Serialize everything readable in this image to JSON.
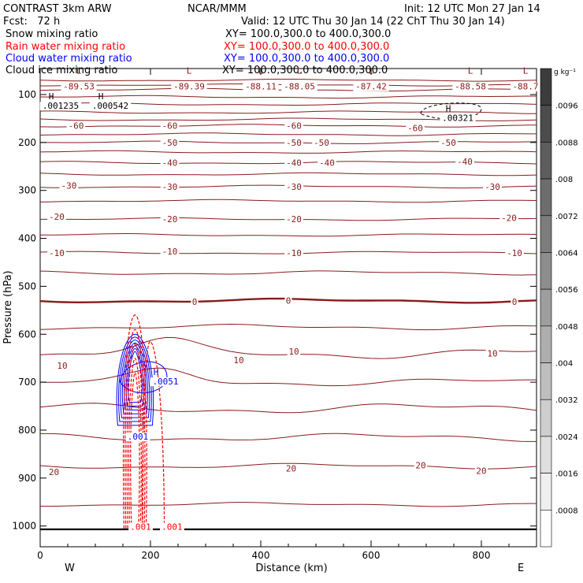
{
  "header": {
    "title": "CONTRAST  3km ARW",
    "org": "NCAR/MMM",
    "init": "Init: 12 UTC Mon 27 Jan 14",
    "fcst": "Fcst:   72 h",
    "valid": "Valid: 12 UTC Thu 30 Jan 14 (22 ChT Thu 30 Jan 14)"
  },
  "legend": [
    {
      "name": "Snow mixing ratio",
      "xy": "XY= 100.0,300.0 to 400.0,300.0",
      "color": "#000000"
    },
    {
      "name": "Rain water mixing ratio",
      "xy": "XY= 100.0,300.0 to 400.0,300.0",
      "color": "#ff0000"
    },
    {
      "name": "Cloud water mixing ratio",
      "xy": "XY= 100.0,300.0 to 400.0,300.0",
      "color": "#0000ff"
    },
    {
      "name": "Cloud ice mixing ratio",
      "xy": "XY= 100.0,300.0 to 400.0,300.0",
      "color": "#000000"
    }
  ],
  "chart_data": {
    "type": "contour",
    "xlabel": "Distance (km)",
    "ylabel": "Pressure (hPa)",
    "xlim": [
      0,
      900
    ],
    "ylim": [
      1050,
      50
    ],
    "x_ticks": [
      "0",
      "200",
      "400",
      "600",
      "800"
    ],
    "y_ticks": [
      "100",
      "200",
      "300",
      "400",
      "500",
      "600",
      "700",
      "800",
      "900",
      "1000"
    ],
    "x_ends": {
      "left": "W",
      "right": "E"
    },
    "temperature_color": "#8b1a1a",
    "isotherm_labels": [
      {
        "text": "-60",
        "x": 65,
        "p": 165
      },
      {
        "text": "-60",
        "x": 235,
        "p": 165
      },
      {
        "text": "-60",
        "x": 460,
        "p": 165
      },
      {
        "text": "-60",
        "x": 680,
        "p": 170
      },
      {
        "text": "-50",
        "x": 235,
        "p": 200
      },
      {
        "text": "-50",
        "x": 460,
        "p": 200
      },
      {
        "text": "-50",
        "x": 510,
        "p": 200
      },
      {
        "text": "-50",
        "x": 740,
        "p": 200
      },
      {
        "text": "-40",
        "x": 235,
        "p": 242
      },
      {
        "text": "-40",
        "x": 460,
        "p": 242
      },
      {
        "text": "-40",
        "x": 520,
        "p": 242
      },
      {
        "text": "-40",
        "x": 770,
        "p": 240
      },
      {
        "text": "-30",
        "x": 52,
        "p": 290
      },
      {
        "text": "-30",
        "x": 235,
        "p": 292
      },
      {
        "text": "-30",
        "x": 460,
        "p": 292
      },
      {
        "text": "-30",
        "x": 820,
        "p": 292
      },
      {
        "text": "-20",
        "x": 30,
        "p": 355
      },
      {
        "text": "-20",
        "x": 235,
        "p": 360
      },
      {
        "text": "-20",
        "x": 460,
        "p": 360
      },
      {
        "text": "-20",
        "x": 850,
        "p": 357
      },
      {
        "text": "-10",
        "x": 30,
        "p": 430
      },
      {
        "text": "-10",
        "x": 235,
        "p": 427
      },
      {
        "text": "-10",
        "x": 460,
        "p": 430
      },
      {
        "text": "-10",
        "x": 860,
        "p": 430
      },
      {
        "text": "0",
        "x": 280,
        "p": 532
      },
      {
        "text": "0",
        "x": 450,
        "p": 530
      },
      {
        "text": "0",
        "x": 860,
        "p": 532
      },
      {
        "text": "10",
        "x": 40,
        "p": 665
      },
      {
        "text": "10",
        "x": 360,
        "p": 654
      },
      {
        "text": "10",
        "x": 460,
        "p": 636
      },
      {
        "text": "10",
        "x": 820,
        "p": 640
      },
      {
        "text": "20",
        "x": 25,
        "p": 887
      },
      {
        "text": "20",
        "x": 455,
        "p": 880
      },
      {
        "text": "20",
        "x": 690,
        "p": 873
      },
      {
        "text": "20",
        "x": 800,
        "p": 885
      }
    ],
    "extrema": [
      {
        "type": "L",
        "label": "-89.53",
        "x": 70,
        "p": 70
      },
      {
        "type": "L",
        "label": "-89.39",
        "x": 270,
        "p": 70
      },
      {
        "type": "L",
        "label": "-88.11",
        "x": 400,
        "p": 70
      },
      {
        "type": "L",
        "label": "-88.05",
        "x": 470,
        "p": 70
      },
      {
        "type": "L",
        "label": "-87.42",
        "x": 600,
        "p": 70
      },
      {
        "type": "L",
        "label": "-88.58",
        "x": 780,
        "p": 70
      },
      {
        "type": "L",
        "label": "-88.7",
        "x": 880,
        "p": 70
      }
    ],
    "hydrometeor_maxima": [
      {
        "type": "H",
        "label": ".001235",
        "x": 20,
        "p": 125,
        "color": "#000000"
      },
      {
        "type": "H",
        "label": ".000542",
        "x": 110,
        "p": 125,
        "color": "#000000"
      },
      {
        "type": "H",
        "label": ".00321",
        "x": 740,
        "p": 150,
        "color": "#000000"
      },
      {
        "type": "H",
        "label": ".0051",
        "x": 210,
        "p": 700,
        "color": "#0000ff"
      },
      {
        "type": "",
        "label": ".001",
        "x": 160,
        "p": 815,
        "color": "#0000ff"
      },
      {
        "type": "",
        "label": ".001",
        "x": 165,
        "p": 1003,
        "color": "#ff0000"
      },
      {
        "type": "",
        "label": ".001",
        "x": 222,
        "p": 1003,
        "color": "#ff0000"
      }
    ],
    "colorbar": {
      "unit": "g kg⁻¹",
      "labels": [
        ".0096",
        ".0088",
        ".008",
        ".0072",
        ".0064",
        ".0056",
        ".0048",
        ".004",
        ".0032",
        ".0024",
        ".0016",
        ".0008"
      ]
    }
  }
}
